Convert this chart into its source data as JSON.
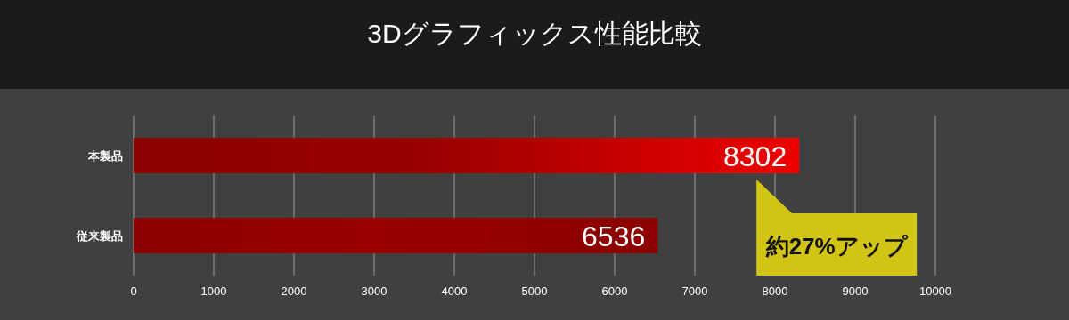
{
  "chart_data": {
    "type": "bar",
    "orientation": "horizontal",
    "title": "3Dグラフィックス性能比較",
    "categories": [
      "本製品",
      "従来製品"
    ],
    "values": [
      8302,
      6536
    ],
    "colors": [
      "#f00000",
      "#8b0000"
    ],
    "xlim": [
      0,
      10000
    ],
    "xticks": [
      0,
      1000,
      2000,
      3000,
      4000,
      5000,
      6000,
      7000,
      8000,
      9000,
      10000
    ],
    "grid": "x",
    "data_labels": true,
    "annotations": [
      "約27%アップ"
    ]
  }
}
